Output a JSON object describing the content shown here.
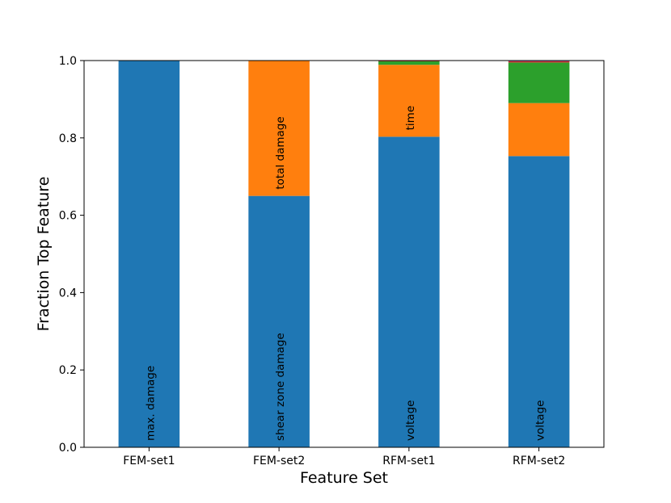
{
  "chart_data": {
    "type": "bar",
    "stacked": true,
    "title": "",
    "xlabel": "Feature Set",
    "ylabel": "Fraction Top Feature",
    "ylim": [
      0,
      1
    ],
    "yticks": [
      "0.0",
      "0.2",
      "0.4",
      "0.6",
      "0.8",
      "1.0"
    ],
    "grid": false,
    "categories": [
      "FEM-set1",
      "FEM-set2",
      "RFM-set1",
      "RFM-set2"
    ],
    "series": [
      {
        "color": "#1f77b4",
        "values": [
          1.0,
          0.65,
          0.803,
          0.753
        ]
      },
      {
        "color": "#ff7f0e",
        "values": [
          0.0,
          0.35,
          0.186,
          0.137
        ]
      },
      {
        "color": "#2ca02c",
        "values": [
          0.0,
          0.0,
          0.009,
          0.105
        ]
      },
      {
        "color": "#d62728",
        "values": [
          0.0,
          0.0,
          0.002,
          0.003
        ]
      },
      {
        "color": "#9467bd",
        "values": [
          0.0,
          0.0,
          0.0,
          0.002
        ]
      }
    ],
    "annotations": [
      {
        "category": "FEM-set1",
        "series": 0,
        "text": "max. damage"
      },
      {
        "category": "FEM-set2",
        "series": 0,
        "text": "shear zone damage"
      },
      {
        "category": "FEM-set2",
        "series": 1,
        "text": "total damage"
      },
      {
        "category": "RFM-set1",
        "series": 0,
        "text": "voltage"
      },
      {
        "category": "RFM-set1",
        "series": 1,
        "text": "time"
      },
      {
        "category": "RFM-set2",
        "series": 0,
        "text": "voltage"
      }
    ]
  }
}
